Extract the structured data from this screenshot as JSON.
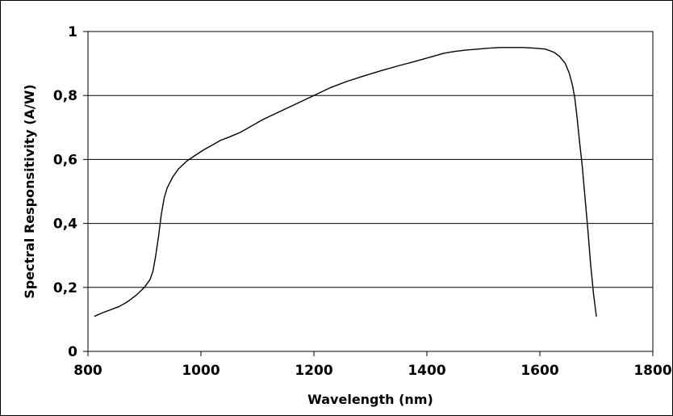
{
  "chart_data": {
    "type": "line",
    "title": "",
    "xlabel": "Wavelength (nm)",
    "ylabel": "Spectral Responsitivity (A/W)",
    "xlim": [
      800,
      1800
    ],
    "ylim": [
      0,
      1
    ],
    "x_ticks": [
      800,
      1000,
      1200,
      1400,
      1600,
      1800
    ],
    "y_ticks": [
      0,
      0.2,
      0.4,
      0.6,
      0.8,
      1
    ],
    "x_tick_labels": [
      "800",
      "1000",
      "1200",
      "1400",
      "1600",
      "1800"
    ],
    "y_tick_labels": [
      "0",
      "0,2",
      "0,4",
      "0,6",
      "0,8",
      "1"
    ],
    "grid": "horizontal",
    "legend": "none",
    "series": [
      {
        "color": "#000000",
        "x": [
          812,
          825,
          840,
          855,
          870,
          885,
          900,
          910,
          915,
          920,
          925,
          930,
          935,
          940,
          950,
          960,
          975,
          990,
          1005,
          1020,
          1035,
          1050,
          1070,
          1090,
          1110,
          1140,
          1170,
          1200,
          1230,
          1260,
          1290,
          1320,
          1350,
          1380,
          1410,
          1430,
          1450,
          1470,
          1490,
          1510,
          1530,
          1550,
          1570,
          1590,
          1610,
          1625,
          1635,
          1645,
          1652,
          1658,
          1662,
          1666,
          1670,
          1675,
          1680,
          1685,
          1690,
          1695,
          1700
        ],
        "y": [
          0.11,
          0.12,
          0.13,
          0.14,
          0.155,
          0.175,
          0.2,
          0.225,
          0.25,
          0.3,
          0.36,
          0.43,
          0.48,
          0.51,
          0.545,
          0.57,
          0.595,
          0.613,
          0.63,
          0.645,
          0.66,
          0.67,
          0.685,
          0.705,
          0.725,
          0.75,
          0.775,
          0.8,
          0.825,
          0.845,
          0.862,
          0.878,
          0.893,
          0.907,
          0.922,
          0.932,
          0.938,
          0.942,
          0.945,
          0.948,
          0.95,
          0.95,
          0.95,
          0.948,
          0.945,
          0.935,
          0.922,
          0.9,
          0.87,
          0.83,
          0.79,
          0.73,
          0.66,
          0.58,
          0.48,
          0.38,
          0.27,
          0.18,
          0.11
        ]
      }
    ]
  }
}
